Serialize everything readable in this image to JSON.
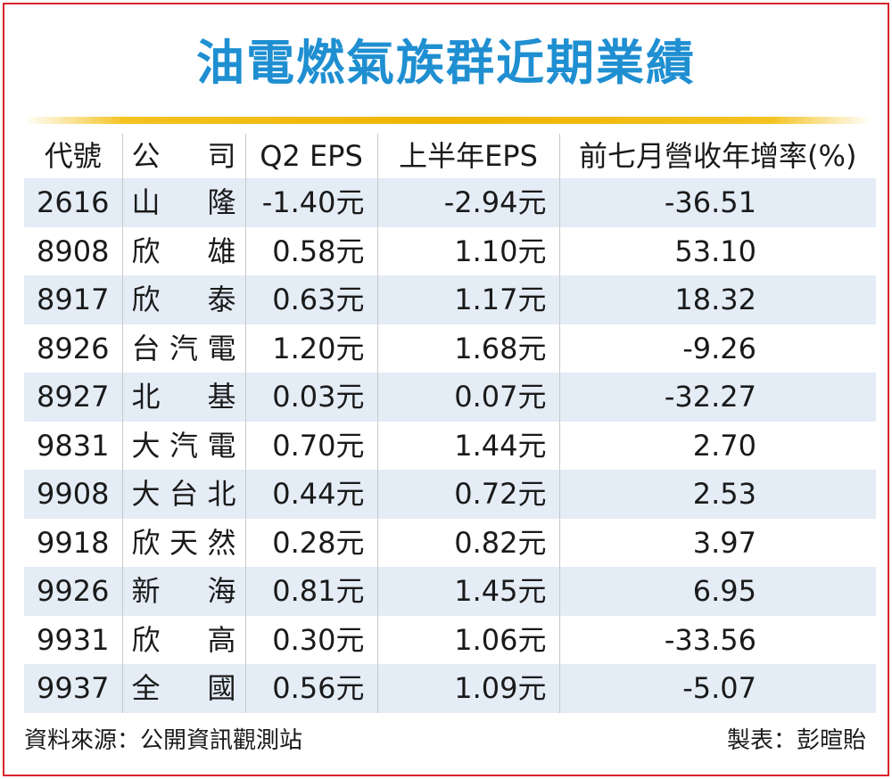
{
  "title": "油電燃氣族群近期業績",
  "headers": {
    "code": "代號",
    "company": "公司",
    "q2_eps": "Q2 EPS",
    "h1_eps": "上半年EPS",
    "growth": "前七月營收年增率(%)"
  },
  "rows": [
    {
      "code": "2616",
      "company": "山隆",
      "q2_eps": "-1.40元",
      "h1_eps": "-2.94元",
      "growth": "-36.51"
    },
    {
      "code": "8908",
      "company": "欣雄",
      "q2_eps": "0.58元",
      "h1_eps": "1.10元",
      "growth": "53.10"
    },
    {
      "code": "8917",
      "company": "欣泰",
      "q2_eps": "0.63元",
      "h1_eps": "1.17元",
      "growth": "18.32"
    },
    {
      "code": "8926",
      "company": "台汽電",
      "q2_eps": "1.20元",
      "h1_eps": "1.68元",
      "growth": "-9.26"
    },
    {
      "code": "8927",
      "company": "北基",
      "q2_eps": "0.03元",
      "h1_eps": "0.07元",
      "growth": "-32.27"
    },
    {
      "code": "9831",
      "company": "大汽電",
      "q2_eps": "0.70元",
      "h1_eps": "1.44元",
      "growth": "2.70"
    },
    {
      "code": "9908",
      "company": "大台北",
      "q2_eps": "0.44元",
      "h1_eps": "0.72元",
      "growth": "2.53"
    },
    {
      "code": "9918",
      "company": "欣天然",
      "q2_eps": "0.28元",
      "h1_eps": "0.82元",
      "growth": "3.97"
    },
    {
      "code": "9926",
      "company": "新海",
      "q2_eps": "0.81元",
      "h1_eps": "1.45元",
      "growth": "6.95"
    },
    {
      "code": "9931",
      "company": "欣高",
      "q2_eps": "0.30元",
      "h1_eps": "1.06元",
      "growth": "-33.56"
    },
    {
      "code": "9937",
      "company": "全國",
      "q2_eps": "0.56元",
      "h1_eps": "1.09元",
      "growth": "-5.07"
    }
  ],
  "footer": {
    "source": "資料來源：公開資訊觀測站",
    "credit": "製表：彭暄貽"
  },
  "colors": {
    "title": "#1f8fd1",
    "border": "#d9232e",
    "rule": "#f0b400",
    "row_shade": "#e4ecf6"
  }
}
